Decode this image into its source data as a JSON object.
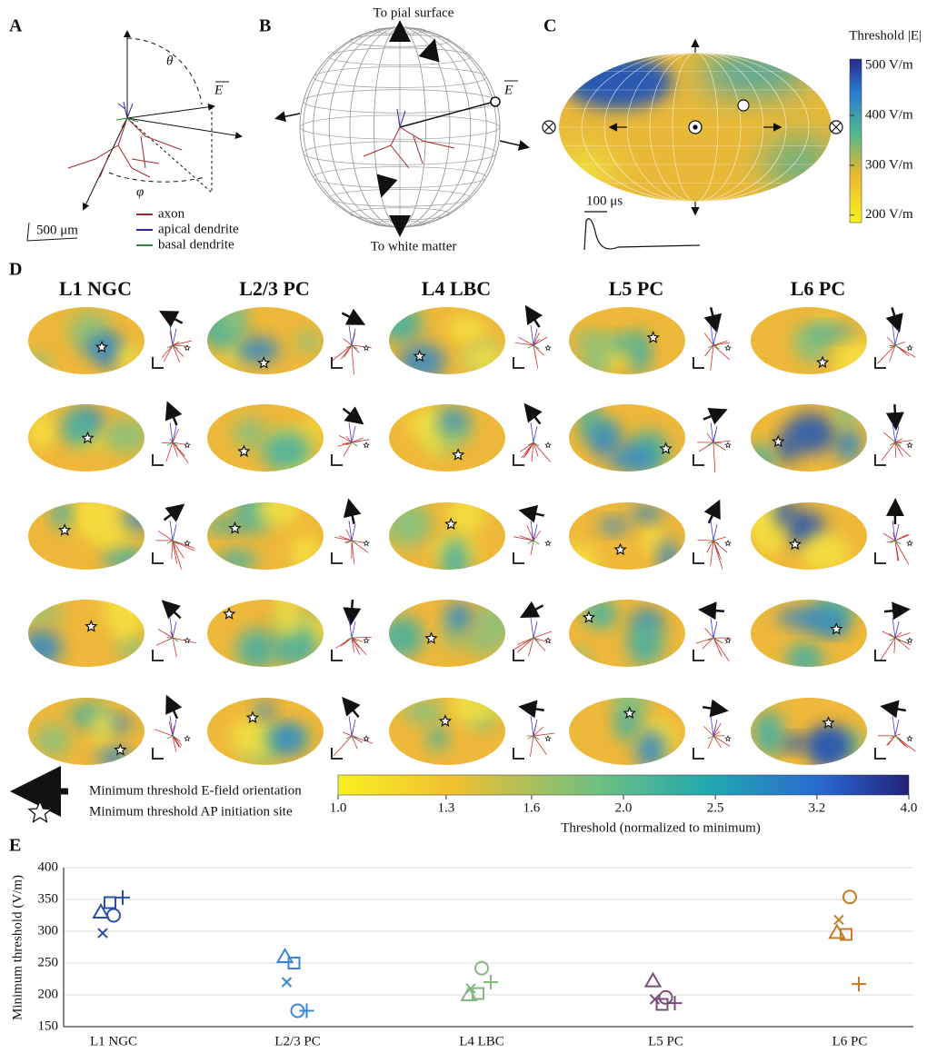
{
  "panel_labels": [
    "A",
    "B",
    "C",
    "D",
    "E"
  ],
  "panel_a": {
    "theta": "θ",
    "e_field": "E",
    "phi": "φ",
    "scale_bar": "500 μm",
    "legend": [
      {
        "name": "axon",
        "color": "#a0282a"
      },
      {
        "name": "apical dendrite",
        "color": "#2a2a9a"
      },
      {
        "name": "basal dendrite",
        "color": "#2a8a3a"
      }
    ]
  },
  "panel_b": {
    "top": "To pial surface",
    "bottom": "To white matter",
    "e_field": "E"
  },
  "panel_c": {
    "colorbar_title": "Threshold |E|",
    "colorbar_lim": [
      185,
      513
    ],
    "colorbar_ticks": [
      {
        "value": 500,
        "label": "500 V/m"
      },
      {
        "value": 400,
        "label": "400 V/m"
      },
      {
        "value": 300,
        "label": "300 V/m"
      },
      {
        "value": 200,
        "label": "200 V/m"
      }
    ],
    "time_scale": "100 μs"
  },
  "panel_d": {
    "columns": [
      "L1 NGC",
      "L2/3 PC",
      "L4 LBC",
      "L5 PC",
      "L6 PC"
    ],
    "colorbar_title": "Threshold (normalized to minimum)",
    "colorbar_lim": [
      1,
      4
    ],
    "colorbar_log": true,
    "colorbar_ticks": [
      {
        "value": 1,
        "label": "1.0"
      },
      1.3,
      1.6,
      {
        "value": 2,
        "label": "2.0"
      },
      2.5,
      3.2,
      {
        "value": 4,
        "label": "4.0"
      }
    ],
    "legend": [
      "Minimum threshold E-field orientation",
      "Minimum threshold AP initiation site"
    ]
  },
  "chart_data": {
    "type": "scatter",
    "y_label": "Minimum threshold (V/m)",
    "categories": [
      "L1 NGC",
      "L2/3 PC",
      "L4 LBC",
      "L5 PC",
      "L6 PC"
    ],
    "markers": [
      "triangle",
      "square",
      "plus",
      "circle",
      "x"
    ],
    "series": [
      {
        "color": "#2a4fa8",
        "values": [
          330,
          345,
          353,
          325,
          297
        ]
      },
      {
        "color": "#3a86d6",
        "values": [
          260,
          250,
          175,
          175,
          220
        ]
      },
      {
        "color": "#84b87e",
        "values": [
          200,
          202,
          220,
          242,
          210
        ]
      },
      {
        "color": "#7a4e78",
        "values": [
          222,
          185,
          187,
          196,
          193
        ]
      },
      {
        "color": "#c47a28",
        "values": [
          298,
          295,
          217,
          354,
          318
        ]
      }
    ],
    "ylim": [
      150,
      400
    ],
    "yticks": [
      150,
      200,
      250,
      300,
      350,
      400
    ],
    "grid": true
  }
}
